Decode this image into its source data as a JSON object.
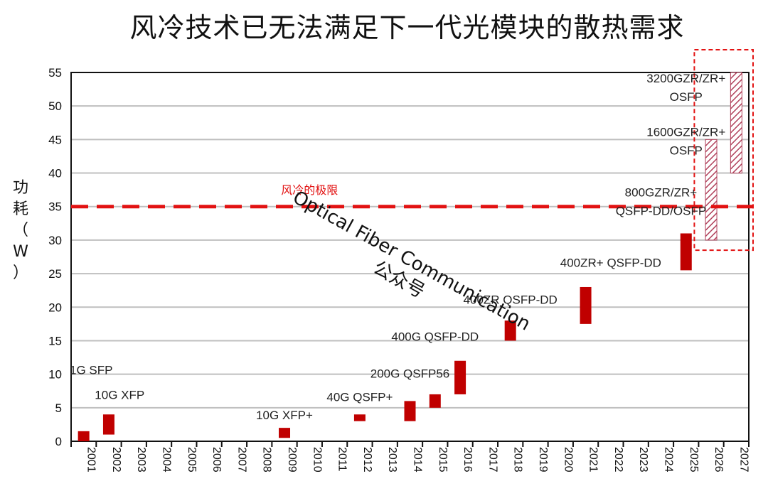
{
  "title": "风冷技术已无法满足下一代光模块的散热需求",
  "ylabel_chars": [
    "功",
    "耗",
    "（",
    "W",
    "）"
  ],
  "limit_label": "风冷的极限",
  "watermark": {
    "line1": "Optical Fiber Communication",
    "line2": "公众号"
  },
  "colors": {
    "bar": "#c00000",
    "hatch": "#b0405a",
    "limit": "#e21212",
    "grid": "#bfbfbf"
  },
  "chart_data": {
    "type": "bar",
    "title": "风冷技术已无法满足下一代光模块的散热需求",
    "ylabel": "功耗（W）",
    "xlabel": "",
    "ylim": [
      0,
      55
    ],
    "yticks": [
      0,
      5,
      10,
      15,
      20,
      25,
      30,
      35,
      40,
      45,
      50,
      55
    ],
    "categories": [
      "2001",
      "2002",
      "2003",
      "2004",
      "2005",
      "2006",
      "2007",
      "2008",
      "2009",
      "2010",
      "2011",
      "2012",
      "2013",
      "2014",
      "2015",
      "2016",
      "2017",
      "2018",
      "2019",
      "2020",
      "2021",
      "2022",
      "2023",
      "2024",
      "2025",
      "2026",
      "2027"
    ],
    "grid": true,
    "reference_line": {
      "value": 35,
      "label": "风冷的极限"
    },
    "ranges": [
      {
        "year": "2001",
        "low": 0,
        "high": 1.5,
        "label": "1G SFP",
        "style": "solid"
      },
      {
        "year": "2002",
        "low": 1,
        "high": 4,
        "label": "10G XFP",
        "style": "solid"
      },
      {
        "year": "2009",
        "low": 0.5,
        "high": 2,
        "label": "10G XFP+",
        "style": "solid"
      },
      {
        "year": "2012",
        "low": 3,
        "high": 4,
        "label": "40G QSFP+",
        "style": "solid"
      },
      {
        "year": "2014",
        "low": 3,
        "high": 6,
        "label": "200G QSFP56",
        "style": "solid"
      },
      {
        "year": "2015",
        "low": 5,
        "high": 7,
        "label": "",
        "style": "solid"
      },
      {
        "year": "2016",
        "low": 7,
        "high": 12,
        "label": "400G QSFP-DD",
        "style": "solid"
      },
      {
        "year": "2018",
        "low": 15,
        "high": 18,
        "label": "400ZR QSFP-DD",
        "style": "solid"
      },
      {
        "year": "2021",
        "low": 17.5,
        "high": 23,
        "label": "400ZR+ QSFP-DD",
        "style": "solid"
      },
      {
        "year": "2025",
        "low": 25.5,
        "high": 31,
        "label": "800GZR/ZR+ QSFP-DD/OSFP",
        "style": "solid"
      },
      {
        "year": "2026",
        "low": 30,
        "high": 45,
        "label": "1600GZR/ZR+ OSFP",
        "style": "hatched"
      },
      {
        "year": "2027",
        "low": 40,
        "high": 55,
        "label": "3200GZR/ZR+ OSFP",
        "style": "hatched"
      }
    ],
    "bar_labels": [
      {
        "lines": [
          "1G SFP"
        ],
        "year": "2001",
        "value": 10,
        "align": "start"
      },
      {
        "lines": [
          "10G XFP"
        ],
        "year": "2002",
        "value": 6.3,
        "align": "start"
      },
      {
        "lines": [
          "10G XFP+"
        ],
        "year": "2009",
        "value": 3.3,
        "align": "middle"
      },
      {
        "lines": [
          "40G QSFP+"
        ],
        "year": "2012",
        "value": 6,
        "align": "middle"
      },
      {
        "lines": [
          "200G QSFP56"
        ],
        "year": "2014",
        "value": 9.5,
        "align": "middle"
      },
      {
        "lines": [
          "400G QSFP-DD"
        ],
        "year": "2015",
        "value": 15,
        "align": "middle"
      },
      {
        "lines": [
          "400ZR QSFP-DD"
        ],
        "year": "2018",
        "value": 20.5,
        "align": "middle"
      },
      {
        "lines": [
          "400ZR+ QSFP-DD"
        ],
        "year": "2022",
        "value": 26,
        "align": "middle"
      },
      {
        "lines": [
          "800GZR/ZR+",
          "QSFP-DD/OSFP"
        ],
        "year": "2024",
        "value": 36.5,
        "align": "middle"
      },
      {
        "lines": [
          "1600GZR/ZR+",
          "OSFP"
        ],
        "year": "2025",
        "value": 45.5,
        "align": "middle"
      },
      {
        "lines": [
          "3200GZR/ZR+",
          "OSFP"
        ],
        "year": "2025",
        "value": 53.5,
        "align": "middle"
      }
    ],
    "highlight_years": [
      "2026",
      "2027"
    ]
  }
}
